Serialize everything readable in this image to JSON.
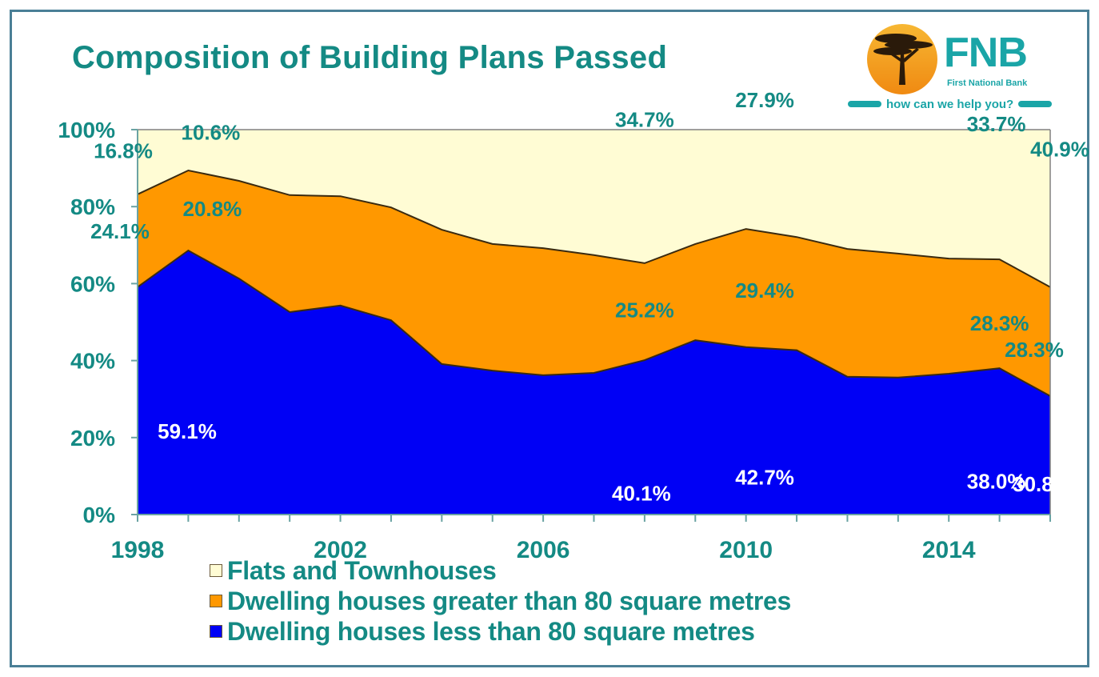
{
  "header": {
    "title": "Composition of Building Plans Passed"
  },
  "logo": {
    "brand": "FNB",
    "subtitle": "First National Bank",
    "tagline": "how can we help you?",
    "icon": "acacia-tree-icon",
    "colors": {
      "teal": "#1aa5a7",
      "orange": "#f5a21c",
      "tree": "#2a1a0a"
    }
  },
  "chart_data": {
    "type": "area",
    "stacked": true,
    "percent": true,
    "title": "Composition of Building Plans Passed",
    "xlabel": "",
    "ylabel": "",
    "x": [
      1998,
      1999,
      2000,
      2001,
      2002,
      2003,
      2004,
      2005,
      2006,
      2007,
      2008,
      2009,
      2010,
      2011,
      2012,
      2013,
      2014,
      2015,
      2016
    ],
    "xticks": [
      1998,
      2002,
      2006,
      2010,
      2014
    ],
    "xtick_labels": [
      "1998",
      "2002",
      "2006",
      "2010",
      "2014"
    ],
    "yticks": [
      0,
      20,
      40,
      60,
      80,
      100
    ],
    "ytick_labels": [
      "0%",
      "20%",
      "40%",
      "60%",
      "80%",
      "100%"
    ],
    "ylim": [
      0,
      100
    ],
    "xlim": [
      1998,
      2016
    ],
    "grid": false,
    "legend_position": "bottom",
    "series": [
      {
        "name": "Dwelling houses less than 80 square metres",
        "color": "#0000f5",
        "values": [
          59.1,
          68.6,
          61.3,
          52.6,
          54.3,
          50.5,
          39.1,
          37.4,
          36.2,
          36.8,
          40.1,
          45.3,
          43.5,
          42.7,
          35.8,
          35.6,
          36.6,
          38.0,
          30.8
        ]
      },
      {
        "name": "Dwelling houses greater than 80 square metres",
        "color": "#ff9800",
        "values": [
          24.1,
          20.8,
          25.4,
          30.4,
          28.4,
          29.3,
          34.9,
          32.9,
          33.0,
          30.6,
          25.2,
          25.0,
          30.7,
          29.4,
          33.2,
          32.2,
          29.9,
          28.3,
          28.3
        ]
      },
      {
        "name": "Flats and Townhouses",
        "color": "#fffcd4",
        "values": [
          16.8,
          10.6,
          13.3,
          17.0,
          17.3,
          20.2,
          26.0,
          29.7,
          30.8,
          32.6,
          34.7,
          29.7,
          25.8,
          27.9,
          31.0,
          32.2,
          33.5,
          33.7,
          40.9
        ]
      }
    ],
    "annotations": [
      {
        "text": "16.8%",
        "series": "Flats and Townhouses",
        "year": 1998,
        "color": "#148a84"
      },
      {
        "text": "10.6%",
        "series": "Flats and Townhouses",
        "year": 1999,
        "color": "#148a84"
      },
      {
        "text": "20.8%",
        "series": "Dwelling houses greater than 80 square metres",
        "year": 1999,
        "color": "#148a84"
      },
      {
        "text": "24.1%",
        "series": "Dwelling houses greater than 80 square metres",
        "year": 1998,
        "color": "#148a84"
      },
      {
        "text": "59.1%",
        "series": "Dwelling houses less than 80 square metres",
        "year": 1998,
        "color": "#ffffff"
      },
      {
        "text": "34.7%",
        "series": "Flats and Townhouses",
        "year": 2008,
        "color": "#148a84"
      },
      {
        "text": "25.2%",
        "series": "Dwelling houses greater than 80 square metres",
        "year": 2008,
        "color": "#148a84"
      },
      {
        "text": "40.1%",
        "series": "Dwelling houses less than 80 square metres",
        "year": 2008,
        "color": "#ffffff"
      },
      {
        "text": "27.9%",
        "series": "Flats and Townhouses",
        "year": 2011,
        "color": "#148a84"
      },
      {
        "text": "29.4%",
        "series": "Dwelling houses greater than 80 square metres",
        "year": 2011,
        "color": "#148a84"
      },
      {
        "text": "42.7%",
        "series": "Dwelling houses less than 80 square metres",
        "year": 2011,
        "color": "#ffffff"
      },
      {
        "text": "33.7%",
        "series": "Flats and Townhouses",
        "year": 2015,
        "color": "#148a84"
      },
      {
        "text": "28.3%",
        "series": "Dwelling houses greater than 80 square metres",
        "year": 2015,
        "color": "#148a84"
      },
      {
        "text": "38.0%",
        "series": "Dwelling houses less than 80 square metres",
        "year": 2015,
        "color": "#ffffff"
      },
      {
        "text": "40.9%",
        "series": "Flats and Townhouses",
        "year": 2016,
        "color": "#148a84"
      },
      {
        "text": "28.3%",
        "series": "Dwelling houses greater than 80 square metres",
        "year": 2016,
        "color": "#148a84"
      },
      {
        "text": "30.8%",
        "series": "Dwelling houses less than 80 square metres",
        "year": 2016,
        "color": "#ffffff"
      }
    ]
  },
  "legend": {
    "items": [
      {
        "label": "Flats and Townhouses",
        "color": "#fffcd4"
      },
      {
        "label": "Dwelling houses greater than 80 square metres",
        "color": "#ff9800"
      },
      {
        "label": "Dwelling houses less than 80 square metres",
        "color": "#0000f5"
      }
    ]
  }
}
